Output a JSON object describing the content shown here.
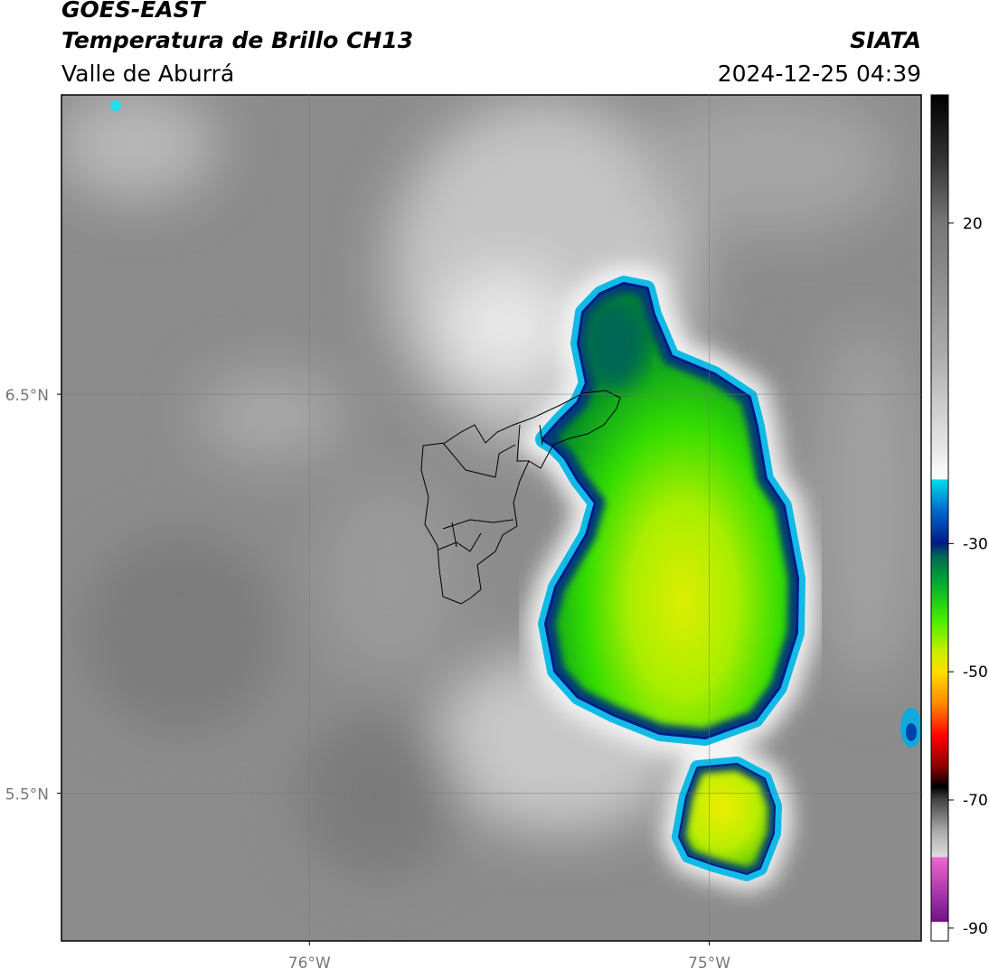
{
  "header": {
    "title": "GOES-EAST",
    "subtitle": "Temperatura de Brillo CH13",
    "region": "Valle de Aburrá",
    "source": "SIATA",
    "timestamp": "2024-12-25 04:39"
  },
  "map": {
    "lonlim": [
      -76.62,
      -74.47
    ],
    "latlim": [
      5.13,
      7.25
    ],
    "lat_ticks": [
      {
        "value": 6.5,
        "label": "6.5°N"
      },
      {
        "value": 5.5,
        "label": "5.5°N"
      }
    ],
    "lon_ticks": [
      {
        "value": -76,
        "label": "76°W"
      },
      {
        "value": -75,
        "label": "75°W"
      }
    ]
  },
  "colorbar": {
    "lim": [
      -92,
      40
    ],
    "ticks": [
      20,
      -30,
      -50,
      -70,
      -90
    ]
  }
}
